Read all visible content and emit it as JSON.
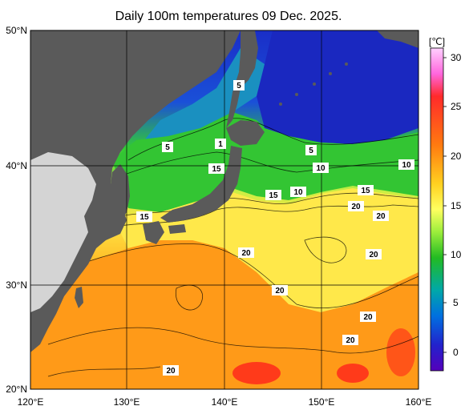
{
  "title": "Daily 100m temperatures 09 Dec. 2025.",
  "colorbar": {
    "unit": "[℃]",
    "ticks": [
      "30",
      "25",
      "20",
      "15",
      "10",
      "5",
      "0"
    ],
    "colors": [
      "#ff88ee",
      "#ff2222",
      "#ff8800",
      "#ffd020",
      "#ffff60",
      "#88ee44",
      "#22bb22",
      "#00a8a8",
      "#0066dd",
      "#2222cc",
      "#4400bb"
    ]
  },
  "axes": {
    "lon_labels": [
      "120°E",
      "130°E",
      "140°E",
      "150°E",
      "160°E"
    ],
    "lat_labels": [
      "50°N",
      "40°N",
      "30°N",
      "20°N"
    ]
  },
  "contour_labels": [
    "5",
    "5",
    "1",
    "15",
    "5",
    "10",
    "10",
    "15",
    "10",
    "15",
    "15",
    "20",
    "20",
    "20",
    "20",
    "20",
    "20",
    "20"
  ],
  "colors": {
    "land": "#5a5a5a",
    "land_light": "#d4d4d4",
    "background": "#ffffff"
  }
}
